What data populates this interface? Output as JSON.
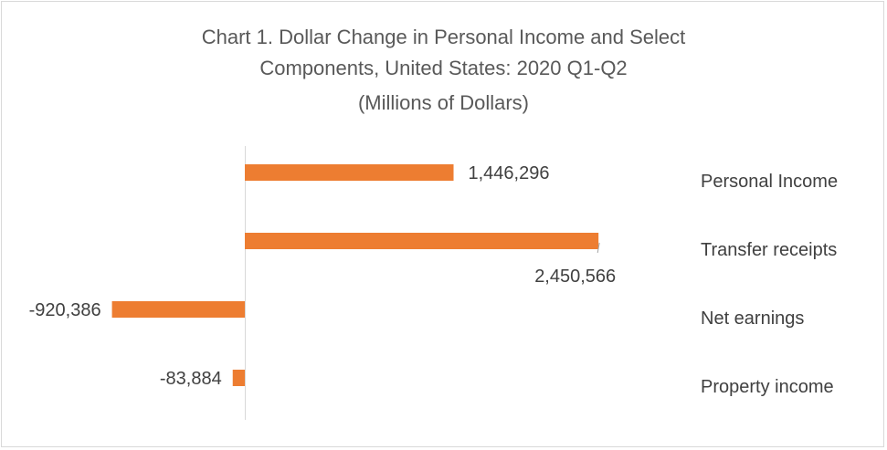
{
  "chart_data": {
    "type": "bar",
    "orientation": "horizontal",
    "title_lines": [
      "Chart 1. Dollar Change in Personal Income and Select",
      "Components, United States: 2020 Q1-Q2",
      "(Millions of Dollars)"
    ],
    "categories": [
      "Personal Income",
      "Transfer receipts",
      "Net earnings",
      "Property income"
    ],
    "values": [
      1446296,
      2450566,
      -920386,
      -83884
    ],
    "data_labels": [
      "1,446,296",
      "2,450,566",
      "-920,386",
      "-83,884"
    ],
    "bar_color": "#ED7D31",
    "xlim": [
      -1700000,
      4000000
    ],
    "grid": false,
    "legend": "none"
  }
}
